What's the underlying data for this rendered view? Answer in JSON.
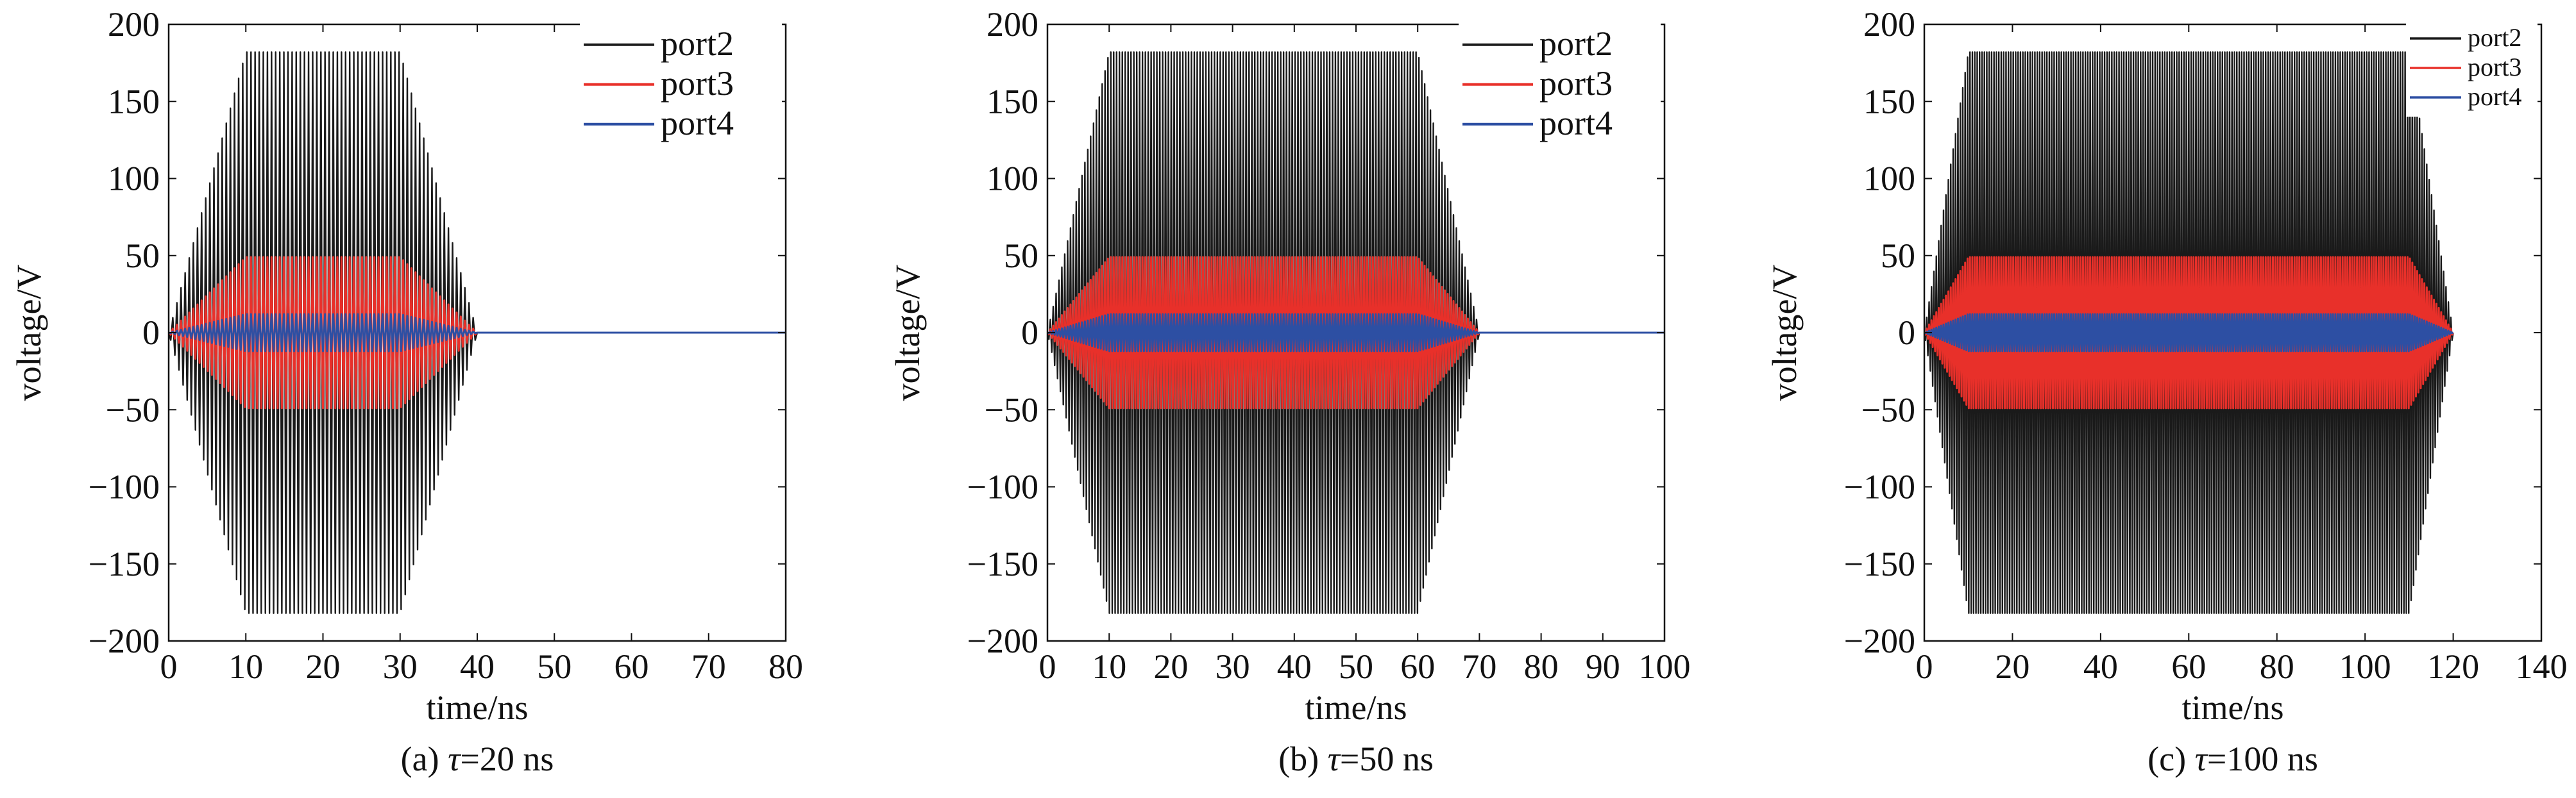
{
  "chart_data": [
    {
      "type": "line",
      "caption_prefix": "(a) ",
      "caption_symbol": "τ",
      "caption_suffix": "=20 ns",
      "xlabel": "time/ns",
      "ylabel": "voltage/V",
      "xlim": [
        0,
        80
      ],
      "ylim": [
        -200,
        200
      ],
      "xticks": [
        0,
        10,
        20,
        30,
        40,
        50,
        60,
        70,
        80
      ],
      "yticks": [
        -200,
        -150,
        -100,
        -50,
        0,
        50,
        100,
        150,
        200
      ],
      "legend_position": "top-right",
      "legend_size": "large",
      "cycles": 75,
      "series": [
        {
          "name": "port2",
          "color": "#1a1a1a",
          "envelope": [
            [
              0,
              0
            ],
            [
              10,
              182
            ],
            [
              30,
              182
            ],
            [
              40,
              0
            ],
            [
              80,
              0
            ]
          ]
        },
        {
          "name": "port3",
          "color": "#e8302a",
          "envelope": [
            [
              0,
              0
            ],
            [
              10,
              49
            ],
            [
              30,
              49
            ],
            [
              40,
              0
            ],
            [
              80,
              0
            ]
          ]
        },
        {
          "name": "port4",
          "color": "#2d4fa3",
          "envelope": [
            [
              0,
              0
            ],
            [
              10,
              12
            ],
            [
              30,
              12
            ],
            [
              40,
              0
            ],
            [
              80,
              0
            ]
          ]
        }
      ]
    },
    {
      "type": "line",
      "caption_prefix": "(b) ",
      "caption_symbol": "τ",
      "caption_suffix": "=50 ns",
      "xlabel": "time/ns",
      "ylabel": "voltage/V",
      "xlim": [
        0,
        100
      ],
      "ylim": [
        -200,
        200
      ],
      "xticks": [
        0,
        10,
        20,
        30,
        40,
        50,
        60,
        70,
        80,
        90,
        100
      ],
      "yticks": [
        -200,
        -150,
        -100,
        -50,
        0,
        50,
        100,
        150,
        200
      ],
      "legend_position": "top-right",
      "legend_size": "large",
      "cycles": 150,
      "series": [
        {
          "name": "port2",
          "color": "#1a1a1a",
          "envelope": [
            [
              0,
              0
            ],
            [
              10,
              182
            ],
            [
              60,
              182
            ],
            [
              70,
              0
            ],
            [
              100,
              0
            ]
          ]
        },
        {
          "name": "port3",
          "color": "#e8302a",
          "envelope": [
            [
              0,
              0
            ],
            [
              10,
              49
            ],
            [
              60,
              49
            ],
            [
              70,
              0
            ],
            [
              100,
              0
            ]
          ]
        },
        {
          "name": "port4",
          "color": "#2d4fa3",
          "envelope": [
            [
              0,
              0
            ],
            [
              10,
              12
            ],
            [
              60,
              12
            ],
            [
              70,
              0
            ],
            [
              100,
              0
            ]
          ]
        }
      ]
    },
    {
      "type": "line",
      "caption_prefix": "(c) ",
      "caption_symbol": "τ",
      "caption_suffix": "=100 ns",
      "xlabel": "time/ns",
      "ylabel": "voltage/V",
      "xlim": [
        0,
        140
      ],
      "ylim": [
        -200,
        200
      ],
      "xticks": [
        0,
        20,
        40,
        60,
        80,
        100,
        120,
        140
      ],
      "yticks": [
        -200,
        -150,
        -100,
        -50,
        0,
        50,
        100,
        150,
        200
      ],
      "legend_position": "top-right",
      "legend_size": "small",
      "cycles": 220,
      "series": [
        {
          "name": "port2",
          "color": "#1a1a1a",
          "envelope": [
            [
              0,
              0
            ],
            [
              10,
              182
            ],
            [
              110,
              182
            ],
            [
              120,
              0
            ]
          ]
        },
        {
          "name": "port3",
          "color": "#e8302a",
          "envelope": [
            [
              0,
              0
            ],
            [
              10,
              49
            ],
            [
              110,
              49
            ],
            [
              120,
              0
            ]
          ]
        },
        {
          "name": "port4",
          "color": "#2d4fa3",
          "envelope": [
            [
              0,
              0
            ],
            [
              10,
              12
            ],
            [
              110,
              12
            ],
            [
              120,
              0
            ]
          ]
        }
      ]
    }
  ]
}
